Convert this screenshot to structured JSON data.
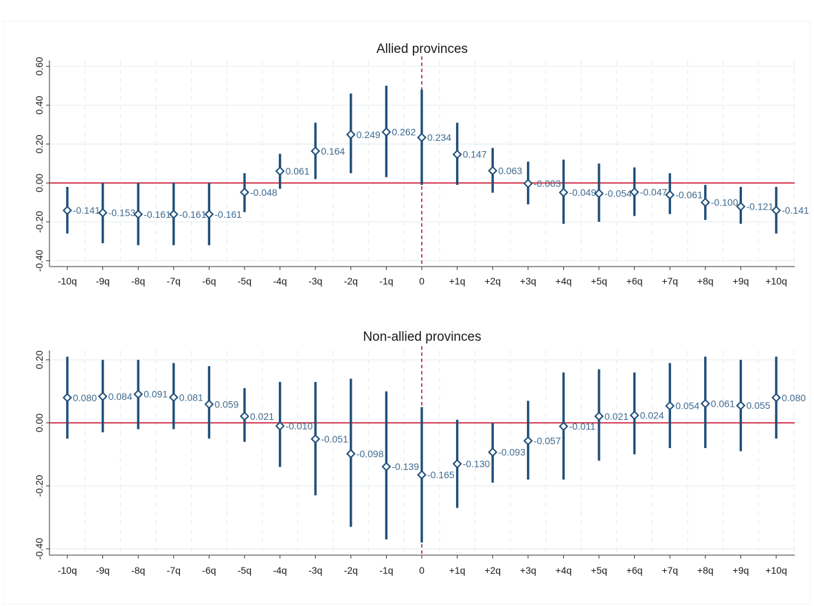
{
  "chart_data": [
    {
      "type": "scatter",
      "title": "Allied provinces",
      "xlabel": "",
      "ylabel": "",
      "categories": [
        "-10q",
        "-9q",
        "-8q",
        "-7q",
        "-6q",
        "-5q",
        "-4q",
        "-3q",
        "-2q",
        "-1q",
        "0",
        "+1q",
        "+2q",
        "+3q",
        "+4q",
        "+5q",
        "+6q",
        "+7q",
        "+8q",
        "+9q",
        "+10q"
      ],
      "series": [
        {
          "values": [
            -0.141,
            -0.153,
            -0.161,
            -0.161,
            -0.161,
            -0.048,
            0.061,
            0.164,
            0.249,
            0.262,
            0.234,
            0.147,
            0.063,
            -0.003,
            -0.049,
            -0.054,
            -0.047,
            -0.061,
            -0.1,
            -0.121,
            -0.141
          ],
          "lower": [
            -0.26,
            -0.31,
            -0.32,
            -0.32,
            -0.32,
            -0.15,
            -0.03,
            0.02,
            0.05,
            0.03,
            -0.01,
            -0.01,
            -0.05,
            -0.11,
            -0.21,
            -0.2,
            -0.17,
            -0.16,
            -0.19,
            -0.21,
            -0.26
          ],
          "upper": [
            -0.02,
            0.0,
            0.0,
            0.0,
            0.0,
            0.05,
            0.15,
            0.31,
            0.46,
            0.5,
            0.48,
            0.31,
            0.18,
            0.11,
            0.12,
            0.1,
            0.08,
            0.05,
            -0.01,
            -0.02,
            -0.02
          ]
        }
      ],
      "labels": [
        "-0.141",
        "-0.153",
        "-0.161",
        "-0.161",
        "-0.161",
        "-0.048",
        "0.061",
        "0.164",
        "0.249",
        "0.262",
        "0.234",
        "0.147",
        "0.063",
        "-0.003",
        "-0.049",
        "-0.054",
        "-0.047",
        "-0.061",
        "-0.100",
        "-0.121",
        "-0.141"
      ],
      "yticks": [
        "0.60",
        "0.40",
        "0.20",
        "0.00",
        "-0.20",
        "-0.40"
      ],
      "ytick_values": [
        0.6,
        0.4,
        0.2,
        0.0,
        -0.2,
        -0.4
      ],
      "ylim": [
        -0.43,
        0.63
      ],
      "reference_lines": {
        "horizontal": 0,
        "vertical_category": "0"
      },
      "grid": true,
      "legend": "none"
    },
    {
      "type": "scatter",
      "title": "Non-allied provinces",
      "xlabel": "",
      "ylabel": "",
      "categories": [
        "-10q",
        "-9q",
        "-8q",
        "-7q",
        "-6q",
        "-5q",
        "-4q",
        "-3q",
        "-2q",
        "-1q",
        "0",
        "+1q",
        "+2q",
        "+3q",
        "+4q",
        "+5q",
        "+6q",
        "+7q",
        "+8q",
        "+9q",
        "+10q"
      ],
      "series": [
        {
          "values": [
            0.08,
            0.084,
            0.091,
            0.081,
            0.059,
            0.021,
            -0.01,
            -0.051,
            -0.098,
            -0.139,
            -0.165,
            -0.13,
            -0.093,
            -0.057,
            -0.011,
            0.021,
            0.024,
            0.054,
            0.061,
            0.055,
            0.08
          ],
          "lower": [
            -0.05,
            -0.03,
            -0.02,
            -0.02,
            -0.05,
            -0.06,
            -0.14,
            -0.23,
            -0.33,
            -0.37,
            -0.38,
            -0.27,
            -0.19,
            -0.18,
            -0.18,
            -0.12,
            -0.1,
            -0.08,
            -0.08,
            -0.09,
            -0.05
          ],
          "upper": [
            0.21,
            0.2,
            0.2,
            0.19,
            0.18,
            0.11,
            0.13,
            0.13,
            0.14,
            0.1,
            0.05,
            0.01,
            0.0,
            0.07,
            0.16,
            0.17,
            0.16,
            0.19,
            0.21,
            0.2,
            0.21
          ]
        }
      ],
      "labels": [
        "0.080",
        "0.084",
        "0.091",
        "0.081",
        "0.059",
        "0.021",
        "-0.010",
        "-0.051",
        "-0.098",
        "-0.139",
        "-0.165",
        "-0.130",
        "-0.093",
        "-0.057",
        "-0.011",
        "0.021",
        "0.024",
        "0.054",
        "0.061",
        "0.055",
        "0.080"
      ],
      "yticks": [
        "0.20",
        "0.00",
        "-0.20",
        "-0.40"
      ],
      "ytick_values": [
        0.2,
        0.0,
        -0.2,
        -0.4
      ],
      "ylim": [
        -0.42,
        0.23
      ],
      "reference_lines": {
        "horizontal": 0,
        "vertical_category": "0"
      },
      "grid": true,
      "legend": "none"
    }
  ],
  "colors": {
    "estimate": "#1f4e79",
    "label": "#3e6a8f",
    "reference": "#c8102e",
    "grid": "#e8eff1",
    "axis": "#333333"
  }
}
